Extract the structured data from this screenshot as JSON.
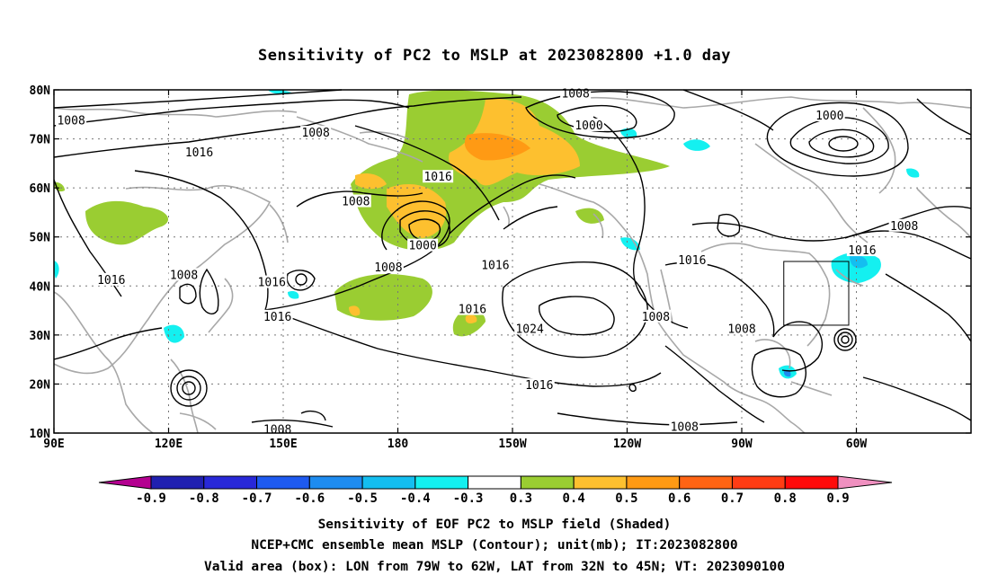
{
  "title": "Sensitivity of PC2 to MSLP at 2023082800 +1.0 day",
  "map": {
    "lon_ticks": [
      "90E",
      "120E",
      "150E",
      "180",
      "150W",
      "120W",
      "90W",
      "60W"
    ],
    "lat_ticks": [
      "10N",
      "20N",
      "30N",
      "40N",
      "50N",
      "60N",
      "70N",
      "80N"
    ],
    "contour_labels": [
      {
        "text": "1008",
        "lon": 94.5,
        "lat": 73.5
      },
      {
        "text": "1008",
        "lon": 158.5,
        "lat": 71
      },
      {
        "text": "1008",
        "lon": 226.5,
        "lat": 79
      },
      {
        "text": "1000",
        "lon": 230,
        "lat": 72.5
      },
      {
        "text": "1000",
        "lon": 293,
        "lat": 74.5
      },
      {
        "text": "1016",
        "lon": 128,
        "lat": 67
      },
      {
        "text": "1016",
        "lon": 190.5,
        "lat": 62
      },
      {
        "text": "1008",
        "lon": 169,
        "lat": 57
      },
      {
        "text": "1000",
        "lon": 186.5,
        "lat": 48
      },
      {
        "text": "1008",
        "lon": 177.5,
        "lat": 43.5
      },
      {
        "text": "1016",
        "lon": 205.5,
        "lat": 44
      },
      {
        "text": "1016",
        "lon": 105,
        "lat": 41
      },
      {
        "text": "1008",
        "lon": 124,
        "lat": 42
      },
      {
        "text": "1016",
        "lon": 147,
        "lat": 40.5
      },
      {
        "text": "1016",
        "lon": 148.5,
        "lat": 33.5
      },
      {
        "text": "1016",
        "lon": 199.5,
        "lat": 35
      },
      {
        "text": "1024",
        "lon": 214.5,
        "lat": 31
      },
      {
        "text": "1008",
        "lon": 247.5,
        "lat": 33.5
      },
      {
        "text": "1016",
        "lon": 257,
        "lat": 45
      },
      {
        "text": "1008",
        "lon": 312.5,
        "lat": 52
      },
      {
        "text": "1016",
        "lon": 301.5,
        "lat": 47
      },
      {
        "text": "1008",
        "lon": 270,
        "lat": 31
      },
      {
        "text": "1016",
        "lon": 217,
        "lat": 19.5
      },
      {
        "text": "1008",
        "lon": 148.5,
        "lat": 10.5
      },
      {
        "text": "1008",
        "lon": 255,
        "lat": 11
      }
    ],
    "valid_box": {
      "lon_west": -79,
      "lon_east": -62,
      "lat_south": 32,
      "lat_north": 45
    }
  },
  "colorbar": {
    "labels": [
      "-0.9",
      "-0.8",
      "-0.7",
      "-0.6",
      "-0.5",
      "-0.4",
      "-0.3",
      "0.3",
      "0.4",
      "0.5",
      "0.6",
      "0.7",
      "0.8",
      "0.9"
    ],
    "colors": [
      "#2020b0",
      "#2828d8",
      "#1e5af0",
      "#1e8cf0",
      "#14bef0",
      "#14f0f0",
      "#ffffff",
      "#9acd32",
      "#fdc02f",
      "#ff9a14",
      "#ff6414",
      "#ff3c14",
      "#ff0a0a"
    ],
    "low_end_color": "#b40090",
    "high_end_color": "#f090c0"
  },
  "captions": {
    "line1": "Sensitivity of EOF PC2 to MSLP field (Shaded)",
    "line2": "NCEP+CMC ensemble mean MSLP (Contour); unit(mb); IT:2023082800",
    "line3": "Valid area (box): LON from 79W to 62W, LAT from 32N to 45N; VT: 2023090100"
  }
}
